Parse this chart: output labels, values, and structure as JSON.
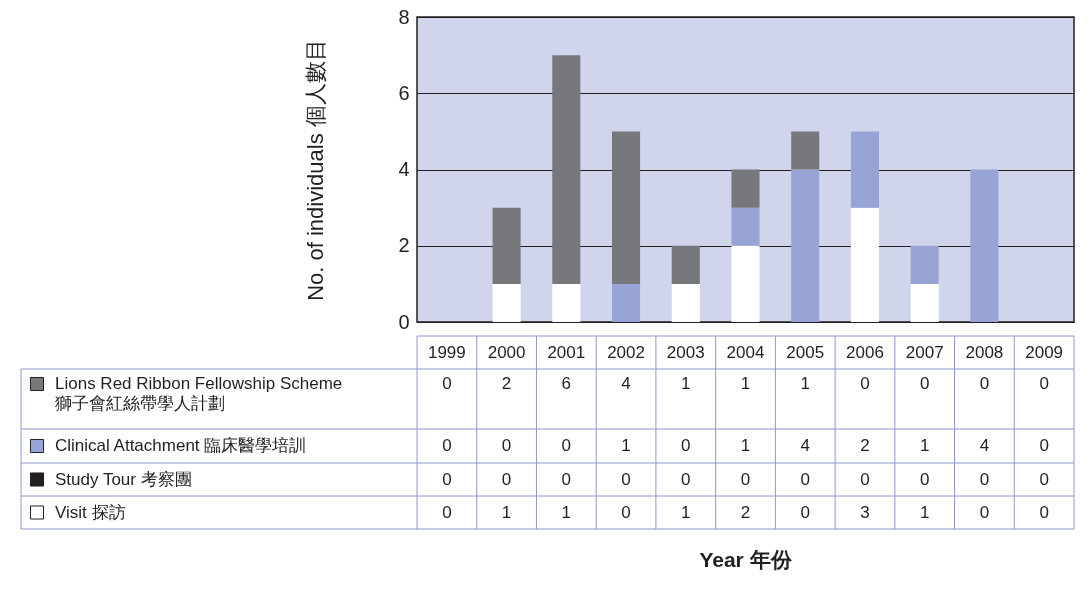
{
  "chart_data": {
    "type": "bar",
    "stacked": true,
    "ylabel": "No. of individuals  個人數目",
    "annotations": [
      "Year  年份"
    ],
    "categories": [
      "1999",
      "2000",
      "2001",
      "2002",
      "2003",
      "2004",
      "2005",
      "2006",
      "2007",
      "2008",
      "2009"
    ],
    "series": [
      {
        "name": "Visit  探訪",
        "color": "#ffffff",
        "values": [
          0,
          1,
          1,
          0,
          1,
          2,
          0,
          3,
          1,
          0,
          0
        ]
      },
      {
        "name": "Study Tour  考察團",
        "color": "#231f20",
        "values": [
          0,
          0,
          0,
          0,
          0,
          0,
          0,
          0,
          0,
          0,
          0
        ]
      },
      {
        "name": "Clinical Attachment  臨床醫學培訓",
        "color": "#98a3d6",
        "values": [
          0,
          0,
          0,
          1,
          0,
          1,
          4,
          2,
          1,
          4,
          0
        ]
      },
      {
        "name": "Lions Red Ribbon Fellowship Scheme\n獅子會紅絲帶學人計劃",
        "color": "#77787b",
        "values": [
          0,
          2,
          6,
          4,
          1,
          1,
          1,
          0,
          0,
          0,
          0
        ]
      }
    ],
    "ylim": [
      0,
      8
    ],
    "yticks": [
      0,
      2,
      4,
      6,
      8
    ],
    "grid": "y",
    "legend": "bottom left",
    "data_labels": true
  }
}
